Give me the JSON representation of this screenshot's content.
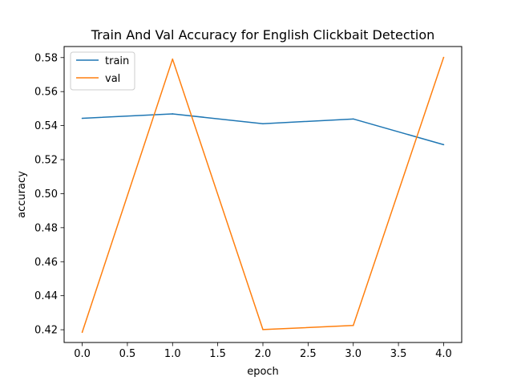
{
  "chart_data": {
    "type": "line",
    "title": "Train And Val Accuracy for English Clickbait Detection",
    "xlabel": "epoch",
    "ylabel": "accuracy",
    "x": [
      0,
      1,
      2,
      3,
      4
    ],
    "xlim": [
      -0.2,
      4.2
    ],
    "ylim": [
      0.4125,
      0.5865
    ],
    "xticks": [
      0.0,
      0.5,
      1.0,
      1.5,
      2.0,
      2.5,
      3.0,
      3.5,
      4.0
    ],
    "xtick_labels": [
      "0.0",
      "0.5",
      "1.0",
      "1.5",
      "2.0",
      "2.5",
      "3.0",
      "3.5",
      "4.0"
    ],
    "yticks": [
      0.42,
      0.44,
      0.46,
      0.48,
      0.5,
      0.52,
      0.54,
      0.56,
      0.58
    ],
    "ytick_labels": [
      "0.42",
      "0.44",
      "0.46",
      "0.48",
      "0.50",
      "0.52",
      "0.54",
      "0.56",
      "0.58"
    ],
    "grid": false,
    "legend_position": "top-left",
    "series": [
      {
        "name": "train",
        "color": "#1f77b4",
        "values": [
          0.5443,
          0.5469,
          0.5411,
          0.5439,
          0.5288
        ]
      },
      {
        "name": "val",
        "color": "#ff7f0e",
        "values": [
          0.4185,
          0.5791,
          0.4201,
          0.4225,
          0.5801
        ]
      }
    ]
  }
}
